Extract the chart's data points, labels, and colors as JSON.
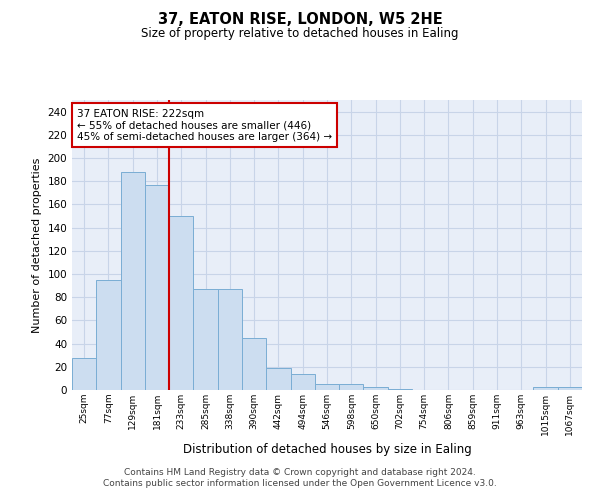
{
  "title": "37, EATON RISE, LONDON, W5 2HE",
  "subtitle": "Size of property relative to detached houses in Ealing",
  "xlabel": "Distribution of detached houses by size in Ealing",
  "ylabel": "Number of detached properties",
  "categories": [
    "25sqm",
    "77sqm",
    "129sqm",
    "181sqm",
    "233sqm",
    "285sqm",
    "338sqm",
    "390sqm",
    "442sqm",
    "494sqm",
    "546sqm",
    "598sqm",
    "650sqm",
    "702sqm",
    "754sqm",
    "806sqm",
    "859sqm",
    "911sqm",
    "963sqm",
    "1015sqm",
    "1067sqm"
  ],
  "bar_values": [
    28,
    95,
    188,
    177,
    150,
    87,
    87,
    45,
    19,
    14,
    5,
    5,
    3,
    1,
    0,
    0,
    0,
    0,
    0,
    3,
    3
  ],
  "bar_color": "#ccddf0",
  "bar_edge_color": "#7aadd4",
  "vline_x": 3.5,
  "annotation_line1": "37 EATON RISE: 222sqm",
  "annotation_line2": "← 55% of detached houses are smaller (446)",
  "annotation_line3": "45% of semi-detached houses are larger (364) →",
  "annotation_box_color": "#ffffff",
  "annotation_box_edge": "#cc0000",
  "vline_color": "#cc0000",
  "ylim": [
    0,
    250
  ],
  "yticks": [
    0,
    20,
    40,
    60,
    80,
    100,
    120,
    140,
    160,
    180,
    200,
    220,
    240
  ],
  "grid_color": "#c8d4e8",
  "bg_color": "#e8eef8",
  "footer_line1": "Contains HM Land Registry data © Crown copyright and database right 2024.",
  "footer_line2": "Contains public sector information licensed under the Open Government Licence v3.0."
}
